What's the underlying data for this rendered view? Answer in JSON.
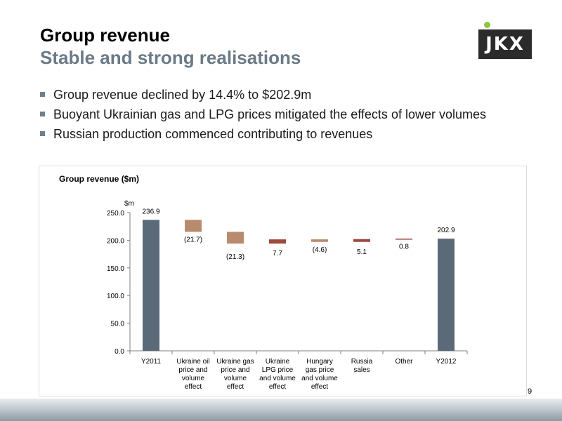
{
  "header": {
    "title": "Group revenue",
    "subtitle": "Stable and strong realisations",
    "logo_text": "JKX"
  },
  "bullets": [
    "Group revenue declined by 14.4% to $202.9m",
    "Buoyant Ukrainian gas and LPG prices mitigated the effects of lower volumes",
    "Russian production commenced contributing to revenues"
  ],
  "page_number": "9",
  "colors": {
    "total_bar": "#5b6a79",
    "decrease_bar": "#b98b6e",
    "increase_bar": "#9e4a3e",
    "subtitle": "#6b7a86",
    "logo_accent": "#8dc63f"
  },
  "chart_data": {
    "type": "bar",
    "subtype": "waterfall",
    "title": "Group revenue ($m)",
    "ylabel": "$m",
    "ylim": [
      0,
      250
    ],
    "yticks": [
      "0.0",
      "50.0",
      "100.0",
      "150.0",
      "200.0",
      "250.0"
    ],
    "categories": [
      [
        "Y2011"
      ],
      [
        "Ukraine oil",
        "price and",
        "volume",
        "effect"
      ],
      [
        "Ukraine gas",
        "price and",
        "volume",
        "effect"
      ],
      [
        "Ukraine",
        "LPG price",
        "and volume",
        "effect"
      ],
      [
        "Hungary",
        "gas price",
        "and volume",
        "effect"
      ],
      [
        "Russia",
        "sales"
      ],
      [
        "Other"
      ],
      [
        "Y2012"
      ]
    ],
    "bars": [
      {
        "kind": "total",
        "start": 0,
        "end": 236.9,
        "label": "236.9"
      },
      {
        "kind": "decrease",
        "start": 236.9,
        "end": 215.2,
        "label": "(21.7)"
      },
      {
        "kind": "decrease",
        "start": 215.2,
        "end": 193.9,
        "label": "(21.3)"
      },
      {
        "kind": "increase",
        "start": 193.9,
        "end": 201.6,
        "label": "7.7"
      },
      {
        "kind": "decrease",
        "start": 201.6,
        "end": 197.0,
        "label": "(4.6)"
      },
      {
        "kind": "increase",
        "start": 197.0,
        "end": 202.1,
        "label": "5.1"
      },
      {
        "kind": "increase",
        "start": 202.1,
        "end": 202.9,
        "label": "0.8"
      },
      {
        "kind": "total",
        "start": 0,
        "end": 202.9,
        "label": "202.9"
      }
    ],
    "grid": false,
    "legend": "none"
  }
}
